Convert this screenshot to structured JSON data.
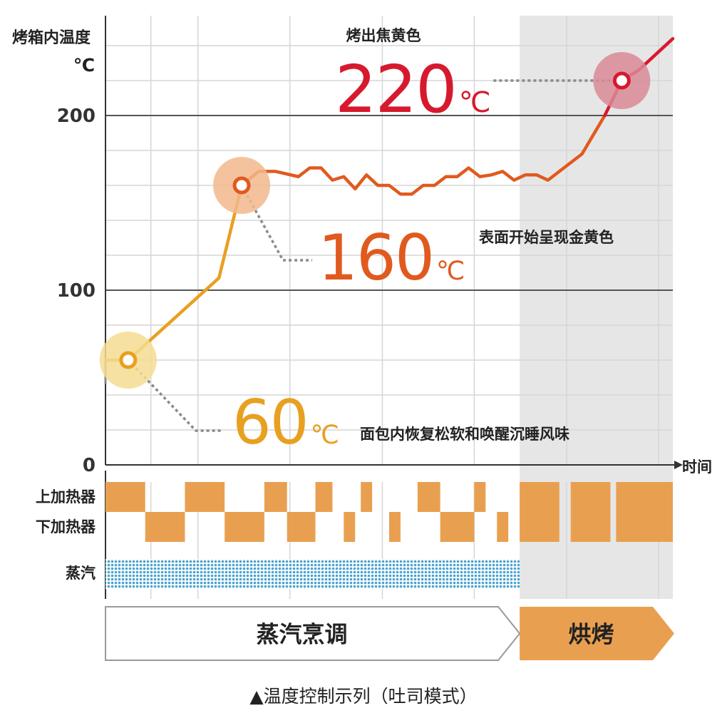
{
  "chart_data": {
    "type": "line",
    "title": "",
    "ylabel": [
      "烤箱内温度",
      "℃"
    ],
    "xlabel": "时间",
    "ylim": [
      0,
      220
    ],
    "xlim": [
      0,
      100
    ],
    "yticks": [
      0,
      100,
      200
    ],
    "grid": true,
    "series": [
      {
        "color": "#e8a020",
        "x": [
          0,
          4,
          20,
          24
        ],
        "y": [
          60,
          60,
          107,
          160
        ]
      },
      {
        "color": "#e05a1e",
        "x": [
          24,
          27,
          30,
          34,
          36,
          38,
          40,
          42,
          44,
          46,
          48,
          50,
          52,
          54,
          56,
          58,
          60,
          62,
          64,
          66,
          68,
          70,
          72,
          74,
          76,
          78,
          80,
          84,
          88
        ],
        "y": [
          160,
          168,
          168,
          165,
          170,
          170,
          163,
          165,
          158,
          166,
          160,
          160,
          155,
          155,
          160,
          160,
          165,
          165,
          170,
          165,
          166,
          168,
          163,
          166,
          166,
          163,
          168,
          178,
          200
        ]
      },
      {
        "color": "#d7192e",
        "x": [
          88,
          91,
          94,
          100
        ],
        "y": [
          200,
          220,
          226,
          244
        ]
      }
    ],
    "markers": [
      {
        "x": 4,
        "y": 60,
        "value": "60",
        "unit": "℃",
        "color": "#e8a020",
        "halo": "#f4dc92",
        "note": "面包内恢复松软和唤醒沉睡风味"
      },
      {
        "x": 24,
        "y": 160,
        "value": "160",
        "unit": "℃",
        "color": "#e05a1e",
        "halo": "#f2b88c",
        "note": "表面开始呈现金黄色"
      },
      {
        "x": 91,
        "y": 220,
        "value": "220",
        "unit": "℃",
        "color": "#d7192e",
        "halo": "#d98a95",
        "note": "烤出焦黄色"
      }
    ],
    "shaded_region": {
      "x0": 73,
      "x1": 100,
      "color": "#e6e6e6"
    },
    "heater_rows": {
      "labels": [
        "上加热器",
        "下加热器"
      ],
      "color": "#e8a050",
      "upper": [
        [
          0,
          7
        ],
        [
          14,
          21
        ],
        [
          28,
          32
        ],
        [
          37,
          40
        ],
        [
          45,
          47
        ],
        [
          55,
          59
        ],
        [
          65,
          67
        ],
        [
          73,
          80
        ],
        [
          82,
          89
        ],
        [
          90,
          100
        ]
      ],
      "lower": [
        [
          7,
          14
        ],
        [
          21,
          28
        ],
        [
          32,
          37
        ],
        [
          42,
          44
        ],
        [
          50,
          52
        ],
        [
          59,
          65
        ],
        [
          69,
          71
        ],
        [
          73,
          80
        ],
        [
          82,
          89
        ],
        [
          90,
          100
        ]
      ]
    },
    "steam": {
      "label": "蒸汽",
      "x0": 0,
      "x1": 73,
      "color": "#4aa3cf"
    },
    "phases": [
      {
        "label": "蒸汽烹调",
        "x0": 0,
        "x1": 73,
        "style": "outline"
      },
      {
        "label": "烘烤",
        "x0": 73,
        "x1": 100,
        "style": "filled",
        "color": "#e8a050"
      }
    ]
  },
  "caption": "▲温度控制示列（吐司模式）"
}
